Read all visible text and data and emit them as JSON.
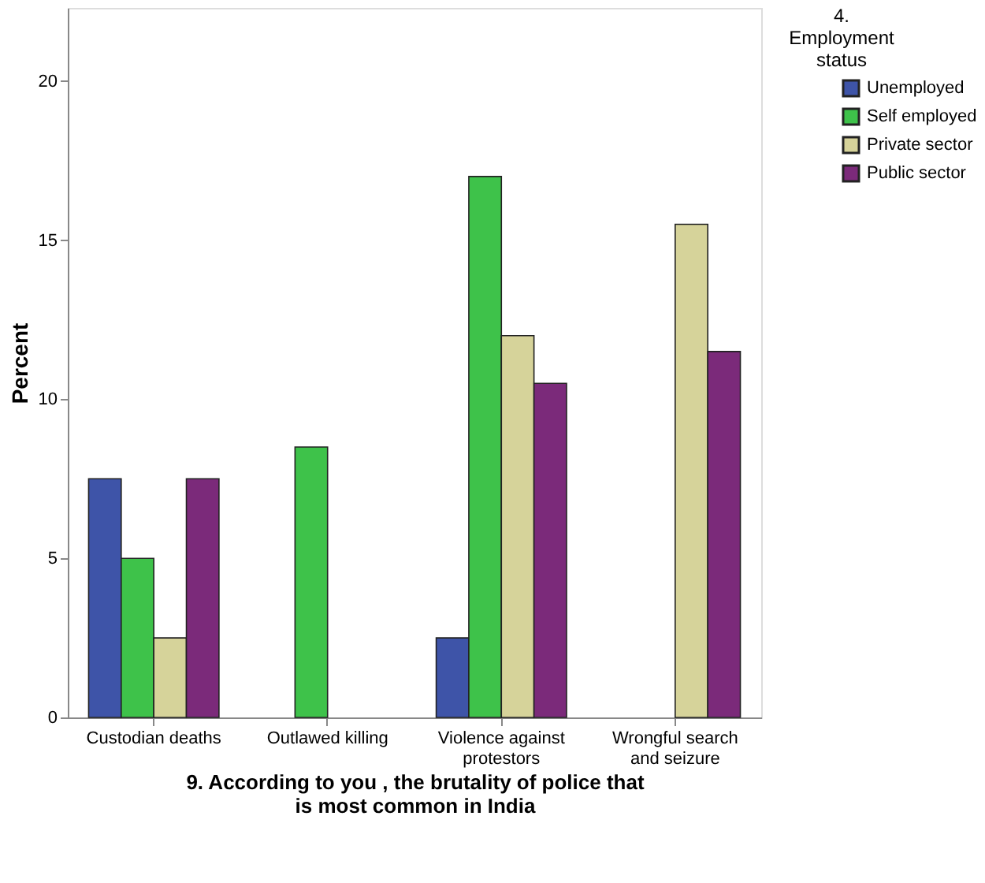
{
  "chart_data": {
    "type": "bar",
    "xlabel": "9. According to you , the brutality of police that is most common in India",
    "ylabel": "Percent",
    "legend_title": "4. Employment status",
    "categories": [
      "Custodian deaths",
      "Outlawed killing",
      "Violence against protestors",
      "Wrongful search and seizure"
    ],
    "series": [
      {
        "name": "Unemployed",
        "color": "#3e54a8",
        "values": [
          7.5,
          0,
          2.5,
          0
        ]
      },
      {
        "name": "Self employed",
        "color": "#3ec24a",
        "values": [
          5,
          8.5,
          17,
          0
        ]
      },
      {
        "name": "Private sector",
        "color": "#d6d39a",
        "values": [
          2.5,
          0,
          12,
          15.5
        ]
      },
      {
        "name": "Public sector",
        "color": "#7b2a7a",
        "values": [
          7.5,
          0,
          10.5,
          11.5
        ]
      }
    ],
    "ylim": [
      0,
      22.3
    ],
    "yticks": [
      0,
      5,
      10,
      15,
      20
    ],
    "grid": false,
    "legend": "right"
  }
}
